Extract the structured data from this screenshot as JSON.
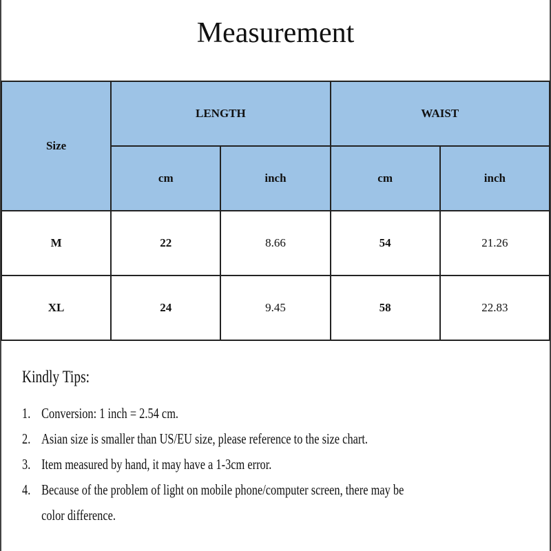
{
  "title": "Measurement",
  "table": {
    "size_header": "Size",
    "groups": [
      "LENGTH",
      "WAIST"
    ],
    "units": [
      "cm",
      "inch",
      "cm",
      "inch"
    ],
    "rows": [
      {
        "size": "M",
        "length_cm": "22",
        "length_inch": "8.66",
        "waist_cm": "54",
        "waist_inch": "21.26"
      },
      {
        "size": "XL",
        "length_cm": "24",
        "length_inch": "9.45",
        "waist_cm": "58",
        "waist_inch": "22.83"
      }
    ],
    "header_color": "#9dc3e6"
  },
  "tips": {
    "title": "Kindly Tips:",
    "items": [
      {
        "num": "1.",
        "text": "Conversion: 1 inch = 2.54 cm."
      },
      {
        "num": "2.",
        "text": "Asian size is smaller than US/EU size, please reference to the size chart."
      },
      {
        "num": "3.",
        "text": "Item measured by hand, it may have a 1-3cm error."
      },
      {
        "num": "4.",
        "text": "Because of the problem of light on mobile phone/computer screen, there may be",
        "continuation": "color difference."
      }
    ]
  }
}
